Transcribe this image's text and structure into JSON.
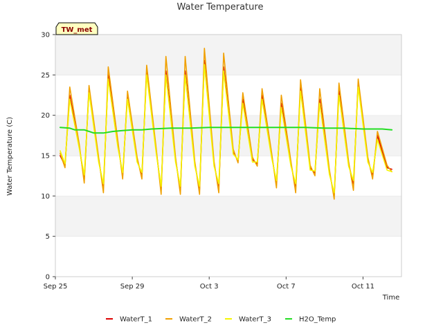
{
  "chart_data": {
    "type": "line",
    "title": "Water Temperature",
    "xlabel": "Time",
    "ylabel": "Water Temperature (C)",
    "badge": "TW_met",
    "ylim": [
      0,
      30
    ],
    "xlim": [
      "2023-09-25",
      "2023-10-13"
    ],
    "yticks": [
      0,
      5,
      10,
      15,
      20,
      25,
      30
    ],
    "xticks": [
      {
        "date": "2023-09-25",
        "label": "Sep 25"
      },
      {
        "date": "2023-09-29",
        "label": "Sep 29"
      },
      {
        "date": "2023-10-03",
        "label": "Oct 3"
      },
      {
        "date": "2023-10-07",
        "label": "Oct 7"
      },
      {
        "date": "2023-10-11",
        "label": "Oct 11"
      }
    ],
    "grid": "horizontal bands",
    "legend_position": "bottom",
    "series": [
      {
        "name": "WaterT_1",
        "color": "#dd0000",
        "points": [
          [
            "2023-09-25T06:00",
            15.0
          ],
          [
            "2023-09-25T12:00",
            13.8
          ],
          [
            "2023-09-25T18:00",
            22.5
          ],
          [
            "2023-09-26T06:00",
            16.0
          ],
          [
            "2023-09-26T12:00",
            12.0
          ],
          [
            "2023-09-26T18:00",
            23.2
          ],
          [
            "2023-09-27T06:00",
            14.5
          ],
          [
            "2023-09-27T12:00",
            11.0
          ],
          [
            "2023-09-27T18:00",
            25.0
          ],
          [
            "2023-09-28T06:00",
            16.5
          ],
          [
            "2023-09-28T12:00",
            12.5
          ],
          [
            "2023-09-28T18:00",
            22.5
          ],
          [
            "2023-09-29T06:00",
            14.5
          ],
          [
            "2023-09-29T12:00",
            12.5
          ],
          [
            "2023-09-29T18:00",
            25.5
          ],
          [
            "2023-09-30T06:00",
            15.5
          ],
          [
            "2023-09-30T12:00",
            10.8
          ],
          [
            "2023-09-30T18:00",
            25.5
          ],
          [
            "2023-10-01T06:00",
            14.5
          ],
          [
            "2023-10-01T12:00",
            10.8
          ],
          [
            "2023-10-01T18:00",
            25.5
          ],
          [
            "2023-10-02T06:00",
            14.0
          ],
          [
            "2023-10-02T12:00",
            10.8
          ],
          [
            "2023-10-02T18:00",
            26.8
          ],
          [
            "2023-10-03T06:00",
            14.0
          ],
          [
            "2023-10-03T12:00",
            11.0
          ],
          [
            "2023-10-03T18:00",
            26.0
          ],
          [
            "2023-10-04T06:00",
            15.5
          ],
          [
            "2023-10-04T12:00",
            14.3
          ],
          [
            "2023-10-04T18:00",
            22.0
          ],
          [
            "2023-10-05T06:00",
            14.5
          ],
          [
            "2023-10-05T12:00",
            14.0
          ],
          [
            "2023-10-05T18:00",
            22.5
          ],
          [
            "2023-10-06T06:00",
            15.0
          ],
          [
            "2023-10-06T12:00",
            11.5
          ],
          [
            "2023-10-06T18:00",
            21.5
          ],
          [
            "2023-10-07T06:00",
            14.0
          ],
          [
            "2023-10-07T12:00",
            11.0
          ],
          [
            "2023-10-07T18:00",
            23.5
          ],
          [
            "2023-10-08T06:00",
            13.5
          ],
          [
            "2023-10-08T12:00",
            12.8
          ],
          [
            "2023-10-08T18:00",
            22.0
          ],
          [
            "2023-10-09T06:00",
            13.0
          ],
          [
            "2023-10-09T12:00",
            10.0
          ],
          [
            "2023-10-09T18:00",
            23.0
          ],
          [
            "2023-10-10T06:00",
            14.0
          ],
          [
            "2023-10-10T12:00",
            11.5
          ],
          [
            "2023-10-10T18:00",
            24.0
          ],
          [
            "2023-10-11T06:00",
            14.5
          ],
          [
            "2023-10-11T12:00",
            12.5
          ],
          [
            "2023-10-11T18:00",
            17.5
          ],
          [
            "2023-10-12T06:00",
            13.5
          ],
          [
            "2023-10-12T12:00",
            13.3
          ]
        ]
      },
      {
        "name": "WaterT_2",
        "color": "#f0a000",
        "points": [
          [
            "2023-09-25T06:00",
            15.3
          ],
          [
            "2023-09-25T12:00",
            13.5
          ],
          [
            "2023-09-25T18:00",
            23.5
          ],
          [
            "2023-09-26T06:00",
            16.3
          ],
          [
            "2023-09-26T12:00",
            11.6
          ],
          [
            "2023-09-26T18:00",
            23.7
          ],
          [
            "2023-09-27T06:00",
            14.8
          ],
          [
            "2023-09-27T12:00",
            10.4
          ],
          [
            "2023-09-27T18:00",
            26.0
          ],
          [
            "2023-09-28T06:00",
            16.8
          ],
          [
            "2023-09-28T12:00",
            12.1
          ],
          [
            "2023-09-28T18:00",
            23.0
          ],
          [
            "2023-09-29T06:00",
            14.8
          ],
          [
            "2023-09-29T12:00",
            12.1
          ],
          [
            "2023-09-29T18:00",
            26.2
          ],
          [
            "2023-09-30T06:00",
            15.8
          ],
          [
            "2023-09-30T12:00",
            10.2
          ],
          [
            "2023-09-30T18:00",
            27.3
          ],
          [
            "2023-10-01T06:00",
            14.8
          ],
          [
            "2023-10-01T12:00",
            10.2
          ],
          [
            "2023-10-01T18:00",
            27.3
          ],
          [
            "2023-10-02T06:00",
            14.3
          ],
          [
            "2023-10-02T12:00",
            10.2
          ],
          [
            "2023-10-02T18:00",
            28.3
          ],
          [
            "2023-10-03T06:00",
            14.3
          ],
          [
            "2023-10-03T12:00",
            10.4
          ],
          [
            "2023-10-03T18:00",
            27.7
          ],
          [
            "2023-10-04T06:00",
            15.8
          ],
          [
            "2023-10-04T12:00",
            14.1
          ],
          [
            "2023-10-04T18:00",
            22.8
          ],
          [
            "2023-10-05T06:00",
            14.8
          ],
          [
            "2023-10-05T12:00",
            13.7
          ],
          [
            "2023-10-05T18:00",
            23.3
          ],
          [
            "2023-10-06T06:00",
            15.3
          ],
          [
            "2023-10-06T12:00",
            11.0
          ],
          [
            "2023-10-06T18:00",
            22.5
          ],
          [
            "2023-10-07T06:00",
            14.3
          ],
          [
            "2023-10-07T12:00",
            10.4
          ],
          [
            "2023-10-07T18:00",
            24.4
          ],
          [
            "2023-10-08T06:00",
            13.8
          ],
          [
            "2023-10-08T12:00",
            12.5
          ],
          [
            "2023-10-08T18:00",
            23.3
          ],
          [
            "2023-10-09T06:00",
            13.3
          ],
          [
            "2023-10-09T12:00",
            9.6
          ],
          [
            "2023-10-09T18:00",
            24.0
          ],
          [
            "2023-10-10T06:00",
            14.3
          ],
          [
            "2023-10-10T12:00",
            10.7
          ],
          [
            "2023-10-10T18:00",
            24.5
          ],
          [
            "2023-10-11T06:00",
            14.8
          ],
          [
            "2023-10-11T12:00",
            12.1
          ],
          [
            "2023-10-11T18:00",
            18.0
          ],
          [
            "2023-10-12T06:00",
            13.8
          ],
          [
            "2023-10-12T12:00",
            13.0
          ]
        ]
      },
      {
        "name": "WaterT_3",
        "color": "#f5f500",
        "points": [
          [
            "2023-09-25T06:00",
            15.6
          ],
          [
            "2023-09-25T12:00",
            14.0
          ],
          [
            "2023-09-25T18:00",
            22.0
          ],
          [
            "2023-09-26T06:00",
            15.8
          ],
          [
            "2023-09-26T12:00",
            12.6
          ],
          [
            "2023-09-26T18:00",
            22.8
          ],
          [
            "2023-09-27T06:00",
            14.2
          ],
          [
            "2023-09-27T12:00",
            11.5
          ],
          [
            "2023-09-27T18:00",
            24.5
          ],
          [
            "2023-09-28T06:00",
            16.0
          ],
          [
            "2023-09-28T12:00",
            12.9
          ],
          [
            "2023-09-28T18:00",
            22.0
          ],
          [
            "2023-09-29T06:00",
            14.2
          ],
          [
            "2023-09-29T12:00",
            12.9
          ],
          [
            "2023-09-29T18:00",
            25.0
          ],
          [
            "2023-09-30T06:00",
            15.2
          ],
          [
            "2023-09-30T12:00",
            11.2
          ],
          [
            "2023-09-30T18:00",
            25.0
          ],
          [
            "2023-10-01T06:00",
            14.2
          ],
          [
            "2023-10-01T12:00",
            11.2
          ],
          [
            "2023-10-01T18:00",
            25.0
          ],
          [
            "2023-10-02T06:00",
            13.7
          ],
          [
            "2023-10-02T12:00",
            11.2
          ],
          [
            "2023-10-02T18:00",
            26.3
          ],
          [
            "2023-10-03T06:00",
            13.7
          ],
          [
            "2023-10-03T12:00",
            11.5
          ],
          [
            "2023-10-03T18:00",
            25.5
          ],
          [
            "2023-10-04T06:00",
            15.2
          ],
          [
            "2023-10-04T12:00",
            14.5
          ],
          [
            "2023-10-04T18:00",
            21.5
          ],
          [
            "2023-10-05T06:00",
            14.2
          ],
          [
            "2023-10-05T12:00",
            14.2
          ],
          [
            "2023-10-05T18:00",
            22.0
          ],
          [
            "2023-10-06T06:00",
            14.7
          ],
          [
            "2023-10-06T12:00",
            11.9
          ],
          [
            "2023-10-06T18:00",
            21.0
          ],
          [
            "2023-10-07T06:00",
            13.7
          ],
          [
            "2023-10-07T12:00",
            11.5
          ],
          [
            "2023-10-07T18:00",
            23.0
          ],
          [
            "2023-10-08T06:00",
            13.2
          ],
          [
            "2023-10-08T12:00",
            13.1
          ],
          [
            "2023-10-08T18:00",
            21.5
          ],
          [
            "2023-10-09T06:00",
            12.7
          ],
          [
            "2023-10-09T12:00",
            10.4
          ],
          [
            "2023-10-09T18:00",
            22.5
          ],
          [
            "2023-10-10T06:00",
            13.7
          ],
          [
            "2023-10-10T12:00",
            11.9
          ],
          [
            "2023-10-10T18:00",
            23.5
          ],
          [
            "2023-10-11T06:00",
            14.2
          ],
          [
            "2023-10-11T12:00",
            12.9
          ],
          [
            "2023-10-11T18:00",
            17.0
          ],
          [
            "2023-10-12T06:00",
            13.2
          ],
          [
            "2023-10-12T12:00",
            13.0
          ]
        ]
      },
      {
        "name": "H2O_Temp",
        "color": "#22dd22",
        "points": [
          [
            "2023-09-25T06:00",
            18.5
          ],
          [
            "2023-09-25T18:00",
            18.4
          ],
          [
            "2023-09-26T00:00",
            18.2
          ],
          [
            "2023-09-26T12:00",
            18.2
          ],
          [
            "2023-09-27T00:00",
            17.8
          ],
          [
            "2023-09-27T12:00",
            17.8
          ],
          [
            "2023-09-28T00:00",
            18.0
          ],
          [
            "2023-09-28T12:00",
            18.1
          ],
          [
            "2023-09-29T00:00",
            18.2
          ],
          [
            "2023-09-29T12:00",
            18.2
          ],
          [
            "2023-09-30T00:00",
            18.3
          ],
          [
            "2023-10-01T00:00",
            18.4
          ],
          [
            "2023-10-02T00:00",
            18.4
          ],
          [
            "2023-10-03T00:00",
            18.5
          ],
          [
            "2023-10-04T00:00",
            18.5
          ],
          [
            "2023-10-05T00:00",
            18.5
          ],
          [
            "2023-10-06T00:00",
            18.5
          ],
          [
            "2023-10-07T00:00",
            18.5
          ],
          [
            "2023-10-08T00:00",
            18.5
          ],
          [
            "2023-10-09T00:00",
            18.4
          ],
          [
            "2023-10-10T00:00",
            18.4
          ],
          [
            "2023-10-11T00:00",
            18.3
          ],
          [
            "2023-10-11T12:00",
            18.3
          ],
          [
            "2023-10-12T00:00",
            18.3
          ],
          [
            "2023-10-12T12:00",
            18.2
          ]
        ]
      }
    ]
  }
}
